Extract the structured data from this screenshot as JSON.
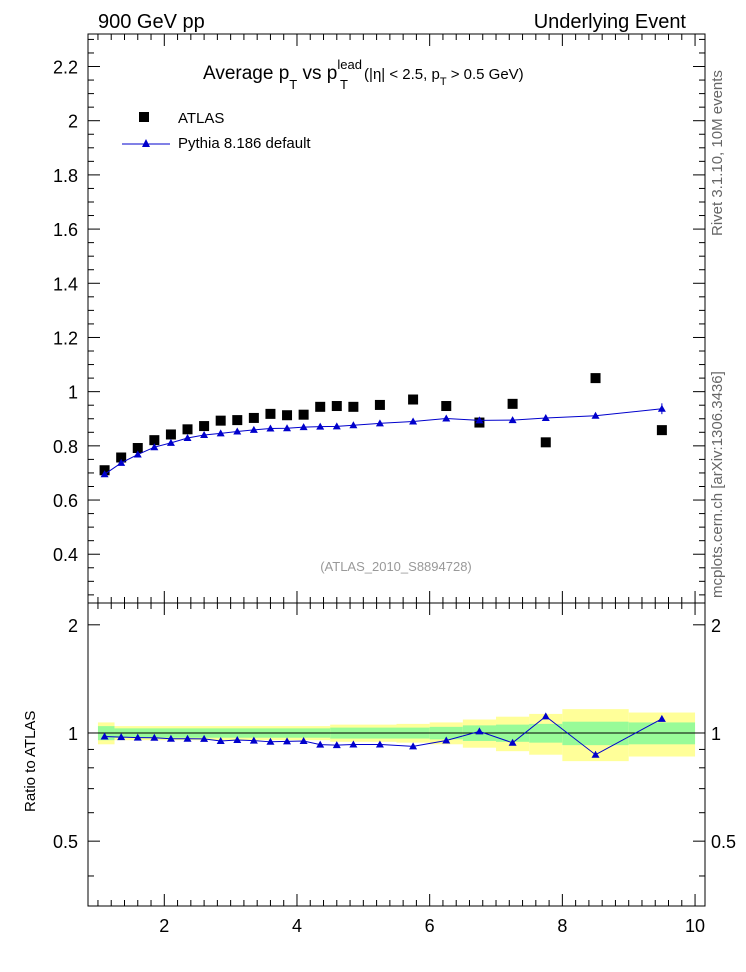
{
  "header": {
    "left": "900 GeV pp",
    "right": "Underlying Event"
  },
  "side_labels": {
    "top": "Rivet 3.1.10, 10M events",
    "bottom": "mcplots.cern.ch [arXiv:1306.3436]"
  },
  "colors": {
    "atlas": "#000000",
    "pythia": "#0000cc",
    "band_inner": "#98fb98",
    "band_outer": "#ffff99"
  },
  "chart_data": [
    {
      "type": "scatter",
      "title_parts": {
        "prefix": "Average p",
        "sub1": "T",
        "mid": " vs p",
        "sup": "lead",
        "sub2": "T",
        "cond1": " (|η| < 2.5, p",
        "sub3": "T",
        "cond2": " > 0.5 GeV)"
      },
      "watermark": "(ATLAS_2010_S8894728)",
      "xlim": [
        0.85,
        10.15
      ],
      "ylim": [
        0.22,
        2.32
      ],
      "y_ticks": [
        0.4,
        0.6,
        0.8,
        1.0,
        1.2,
        1.4,
        1.6,
        1.8,
        2.0,
        2.2
      ],
      "y_tick_labels": [
        "0.4",
        "0.6",
        "0.8",
        "1",
        "1.2",
        "1.4",
        "1.6",
        "1.8",
        "2",
        "2.2"
      ],
      "legend_position": "top-left",
      "series": [
        {
          "name": "ATLAS",
          "marker": "square",
          "x": [
            1.1,
            1.35,
            1.6,
            1.85,
            2.1,
            2.35,
            2.6,
            2.85,
            3.1,
            3.35,
            3.6,
            3.85,
            4.1,
            4.35,
            4.6,
            4.85,
            5.25,
            5.75,
            6.25,
            6.75,
            7.25,
            7.75,
            8.5,
            9.5
          ],
          "y": [
            0.71,
            0.757,
            0.792,
            0.821,
            0.842,
            0.861,
            0.873,
            0.893,
            0.895,
            0.903,
            0.918,
            0.913,
            0.915,
            0.944,
            0.947,
            0.944,
            0.951,
            0.971,
            0.947,
            0.886,
            0.955,
            0.813,
            1.05,
            0.858
          ]
        },
        {
          "name": "Pythia 8.186 default",
          "marker": "triangle",
          "x": [
            1.1,
            1.35,
            1.6,
            1.85,
            2.1,
            2.35,
            2.6,
            2.85,
            3.1,
            3.35,
            3.6,
            3.85,
            4.1,
            4.35,
            4.6,
            4.85,
            5.25,
            5.75,
            6.25,
            6.75,
            7.25,
            7.75,
            8.5,
            9.5
          ],
          "y": [
            0.695,
            0.737,
            0.768,
            0.795,
            0.811,
            0.829,
            0.84,
            0.846,
            0.853,
            0.859,
            0.864,
            0.865,
            0.869,
            0.871,
            0.872,
            0.876,
            0.883,
            0.89,
            0.901,
            0.894,
            0.895,
            0.903,
            0.911,
            0.937
          ],
          "yerr_last": 0.02
        }
      ]
    },
    {
      "type": "line",
      "ylabel": "Ratio to ATLAS",
      "xlim": [
        0.85,
        10.15
      ],
      "ylim": [
        0.33,
        2.3
      ],
      "x_ticks": [
        2,
        4,
        6,
        8,
        10
      ],
      "x_tick_labels": [
        "2",
        "4",
        "6",
        "8",
        "10"
      ],
      "y_ticks": [
        0.5,
        1,
        2
      ],
      "y_tick_labels": [
        "0.5",
        "1",
        "2"
      ],
      "band_bins": [
        {
          "lo": 1.0,
          "hi": 1.25,
          "inner": 0.045,
          "outer": 0.07
        },
        {
          "lo": 1.25,
          "hi": 4.5,
          "inner": 0.03,
          "outer": 0.045
        },
        {
          "lo": 4.5,
          "hi": 5.5,
          "inner": 0.035,
          "outer": 0.055
        },
        {
          "lo": 5.5,
          "hi": 6.0,
          "inner": 0.035,
          "outer": 0.06
        },
        {
          "lo": 6.0,
          "hi": 6.5,
          "inner": 0.04,
          "outer": 0.07
        },
        {
          "lo": 6.5,
          "hi": 7.0,
          "inner": 0.05,
          "outer": 0.09
        },
        {
          "lo": 7.0,
          "hi": 7.5,
          "inner": 0.055,
          "outer": 0.11
        },
        {
          "lo": 7.5,
          "hi": 8.0,
          "inner": 0.06,
          "outer": 0.13
        },
        {
          "lo": 8.0,
          "hi": 9.0,
          "inner": 0.075,
          "outer": 0.165
        },
        {
          "lo": 9.0,
          "hi": 10.0,
          "inner": 0.07,
          "outer": 0.14
        }
      ],
      "series": [
        {
          "name": "Pythia 8.186 default",
          "x": [
            1.1,
            1.35,
            1.6,
            1.85,
            2.1,
            2.35,
            2.6,
            2.85,
            3.1,
            3.35,
            3.6,
            3.85,
            4.1,
            4.35,
            4.6,
            4.85,
            5.25,
            5.75,
            6.25,
            6.75,
            7.25,
            7.75,
            8.5,
            9.5
          ],
          "y": [
            0.978,
            0.974,
            0.971,
            0.97,
            0.964,
            0.964,
            0.963,
            0.95,
            0.956,
            0.952,
            0.945,
            0.948,
            0.95,
            0.928,
            0.925,
            0.929,
            0.929,
            0.918,
            0.953,
            1.01,
            0.939,
            1.112,
            0.87,
            1.095
          ]
        }
      ]
    }
  ]
}
